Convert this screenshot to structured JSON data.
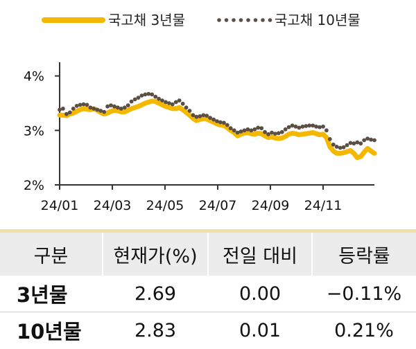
{
  "chart_data": {
    "type": "line",
    "x_start": "24/01",
    "x_end": "24/12",
    "x_ticks": [
      "24/01",
      "24/03",
      "24/05",
      "24/07",
      "24/09",
      "24/11"
    ],
    "y_ticks": [
      "2%",
      "3%",
      "4%"
    ],
    "ylim": [
      2,
      4.25
    ],
    "legend_position": "top",
    "series": [
      {
        "name": "국고채 3년물",
        "style": "line",
        "color": "#f5b800",
        "values": [
          3.28,
          3.28,
          3.27,
          3.3,
          3.32,
          3.35,
          3.38,
          3.4,
          3.39,
          3.38,
          3.4,
          3.37,
          3.33,
          3.3,
          3.32,
          3.35,
          3.37,
          3.36,
          3.34,
          3.34,
          3.37,
          3.4,
          3.42,
          3.44,
          3.47,
          3.5,
          3.52,
          3.54,
          3.53,
          3.5,
          3.47,
          3.44,
          3.42,
          3.4,
          3.4,
          3.42,
          3.38,
          3.33,
          3.28,
          3.22,
          3.18,
          3.2,
          3.22,
          3.21,
          3.18,
          3.15,
          3.12,
          3.1,
          3.09,
          3.05,
          3.0,
          2.96,
          2.9,
          2.93,
          2.95,
          2.96,
          2.94,
          2.93,
          2.95,
          2.94,
          2.9,
          2.87,
          2.88,
          2.86,
          2.85,
          2.86,
          2.89,
          2.93,
          2.95,
          2.94,
          2.92,
          2.93,
          2.94,
          2.95,
          2.96,
          2.94,
          2.92,
          2.93,
          2.87,
          2.7,
          2.62,
          2.58,
          2.58,
          2.59,
          2.61,
          2.63,
          2.58,
          2.5,
          2.52,
          2.6,
          2.67,
          2.62,
          2.58
        ]
      },
      {
        "name": "국고채 10년물",
        "style": "dotted",
        "color": "#5a4e45",
        "values": [
          3.38,
          3.4,
          3.3,
          3.33,
          3.4,
          3.45,
          3.47,
          3.48,
          3.47,
          3.42,
          3.4,
          3.38,
          3.36,
          3.34,
          3.44,
          3.46,
          3.44,
          3.42,
          3.4,
          3.42,
          3.46,
          3.53,
          3.57,
          3.6,
          3.64,
          3.66,
          3.67,
          3.66,
          3.62,
          3.58,
          3.55,
          3.52,
          3.5,
          3.48,
          3.52,
          3.55,
          3.49,
          3.42,
          3.36,
          3.28,
          3.25,
          3.26,
          3.28,
          3.27,
          3.23,
          3.2,
          3.17,
          3.15,
          3.14,
          3.1,
          3.04,
          3.0,
          2.96,
          2.98,
          3.0,
          3.02,
          3.0,
          3.02,
          3.05,
          3.04,
          2.97,
          2.93,
          2.96,
          2.94,
          2.95,
          2.97,
          3.02,
          3.06,
          3.09,
          3.07,
          3.05,
          3.07,
          3.08,
          3.09,
          3.09,
          3.07,
          3.06,
          3.07,
          3.0,
          2.84,
          2.74,
          2.7,
          2.68,
          2.69,
          2.73,
          2.77,
          2.76,
          2.78,
          2.76,
          2.82,
          2.85,
          2.83,
          2.82
        ]
      }
    ]
  },
  "table": {
    "headers": [
      "구분",
      "현재가(%)",
      "전일 대비",
      "등락률"
    ],
    "rows": [
      [
        "3년물",
        "2.69",
        "0.00",
        "−0.11%"
      ],
      [
        "10년물",
        "2.83",
        "0.01",
        "0.21%"
      ]
    ]
  }
}
